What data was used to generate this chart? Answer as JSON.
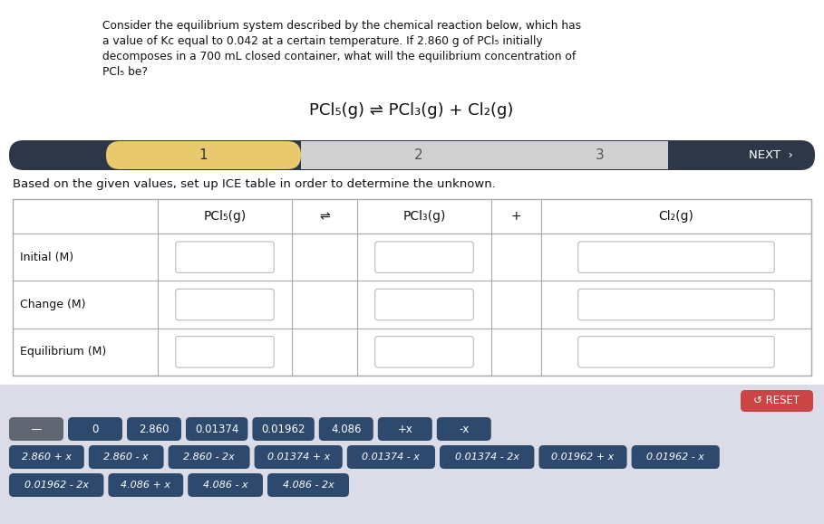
{
  "bg_color": "#ffffff",
  "panel_bg": "#dcdce8",
  "title_lines": [
    "Consider the equilibrium system described by the chemical reaction below, which has",
    "a value of Kc equal to 0.042 at a certain temperature. If 2.860 g of PCl₅ initially",
    "decomposes in a 700 mL closed container, what will the equilibrium concentration of",
    "PCl₅ be?"
  ],
  "equation": "PCl₅(g) ⇌ PCl₃(g) + Cl₂(g)",
  "nav_bg": "#2d3748",
  "nav_highlight": "#e8c96e",
  "nav_light": "#d0d0d0",
  "instruction": "Based on the given values, set up ICE table in order to determine the unknown.",
  "table_row_labels": [
    "Initial (M)",
    "Change (M)",
    "Equilibrium (M)"
  ],
  "table_col_headers": [
    "PCl₅(g)",
    "⇌",
    "PCl₃(g)",
    "+",
    "Cl₂(g)"
  ],
  "reset_color": "#cc4444",
  "reset_text": "↺ RESET",
  "tile_dark": "#2d4a6e",
  "tile_gray": "#606672",
  "tile_text": "#ffffff",
  "row1_tiles": [
    "  —  ",
    "0",
    "2.860",
    "0.01374",
    "0.01962",
    "4.086",
    "+x",
    "-x"
  ],
  "row1_gray": [
    true,
    false,
    false,
    false,
    false,
    false,
    false,
    false
  ],
  "row2_tiles": [
    "2.860 + x",
    "2.860 - x",
    "2.860 - 2x",
    "0.01374 + x",
    "0.01374 - x",
    "0.01374 - 2x",
    "0.01962 + x",
    "0.01962 - x"
  ],
  "row3_tiles": [
    "0.01962 - 2x",
    "4.086 + x",
    "4.086 - x",
    "4.086 - 2x"
  ]
}
